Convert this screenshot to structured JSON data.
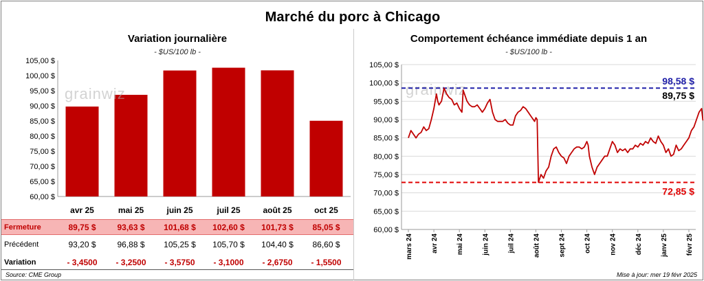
{
  "title": "Marché du porc à Chicago",
  "left": {
    "subtitle": "Variation journalière",
    "unit": "- $US/100 lb -"
  },
  "right": {
    "subtitle": "Comportement échéance immédiate depuis 1 an",
    "unit": "- $US/100 lb -"
  },
  "watermark": "grainwiz",
  "table": {
    "rows": [
      {
        "label": "Fermeture",
        "cells": [
          "89,75  $",
          "93,63  $",
          "101,68  $",
          "102,60  $",
          "101,73  $",
          "85,05  $"
        ]
      },
      {
        "label": "Précédent",
        "cells": [
          "93,20  $",
          "96,88  $",
          "105,25  $",
          "105,70  $",
          "104,40  $",
          "86,60  $"
        ]
      },
      {
        "label": "Variation",
        "cells": [
          "- 3,4500",
          "- 3,2500",
          "- 3,5750",
          "- 3,1000",
          "- 2,6750",
          "- 1,5500"
        ]
      }
    ]
  },
  "footer": {
    "source": "Source: CME Group",
    "update": "Mise à jour: mer 19 févr 2025"
  },
  "colors": {
    "bar": "#c00000",
    "line": "#c00000",
    "high_line": "#1f1fa8",
    "low_line": "#e00000"
  },
  "chart_data": [
    {
      "type": "bar",
      "categories": [
        "avr 25",
        "mai 25",
        "juin 25",
        "juil 25",
        "août 25",
        "oct 25"
      ],
      "values": [
        89.75,
        93.63,
        101.68,
        102.6,
        101.73,
        85.05
      ],
      "ylim": [
        60,
        105
      ],
      "yticks": [
        60,
        65,
        70,
        75,
        80,
        85,
        90,
        95,
        100,
        105
      ],
      "ytick_labels": [
        "60,00 $",
        "65,00 $",
        "70,00 $",
        "75,00 $",
        "80,00 $",
        "85,00 $",
        "90,00 $",
        "95,00 $",
        "100,00 $",
        "105,00 $"
      ],
      "grid": false
    },
    {
      "type": "line",
      "ylim": [
        60,
        105
      ],
      "yticks": [
        60,
        65,
        70,
        75,
        80,
        85,
        90,
        95,
        100,
        105
      ],
      "ytick_labels": [
        "60,00 $",
        "65,00 $",
        "70,00 $",
        "75,00 $",
        "80,00 $",
        "85,00 $",
        "90,00 $",
        "95,00 $",
        "100,00 $",
        "105,00 $"
      ],
      "xtick_labels": [
        "mars 24",
        "avr 24",
        "mai 24",
        "juin 24",
        "juil 24",
        "août 24",
        "sept 24",
        "oct 24",
        "nov 24",
        "déc 24",
        "janv 25",
        "févr 25"
      ],
      "grid": true,
      "series": [
        {
          "x": [
            0,
            0.1,
            0.2,
            0.3,
            0.4,
            0.5,
            0.6,
            0.7,
            0.8,
            0.9,
            1.0,
            1.1,
            1.15,
            1.2,
            1.3,
            1.4,
            1.5,
            1.6,
            1.7,
            1.8,
            1.9,
            2.0,
            2.1,
            2.15,
            2.2,
            2.3,
            2.4,
            2.5,
            2.6,
            2.7,
            2.8,
            2.9,
            3.0,
            3.1,
            3.2,
            3.3,
            3.4,
            3.5,
            3.6,
            3.7,
            3.8,
            3.9,
            4.0,
            4.1,
            4.2,
            4.3,
            4.4,
            4.5,
            4.6,
            4.7,
            4.8,
            4.9,
            4.95,
            5.0,
            5.05,
            5.1,
            5.2,
            5.3,
            5.4,
            5.5,
            5.6,
            5.7,
            5.8,
            5.9,
            6.0,
            6.1,
            6.2,
            6.3,
            6.4,
            6.5,
            6.6,
            6.7,
            6.8,
            6.9,
            7.0,
            7.05,
            7.1,
            7.2,
            7.3,
            7.4,
            7.5,
            7.6,
            7.7,
            7.8,
            7.9,
            8.0,
            8.1,
            8.2,
            8.3,
            8.4,
            8.5,
            8.6,
            8.7,
            8.8,
            8.9,
            9.0,
            9.1,
            9.2,
            9.3,
            9.4,
            9.5,
            9.6,
            9.7,
            9.8,
            9.9,
            10.0,
            10.1,
            10.2,
            10.3,
            10.4,
            10.5,
            10.6,
            10.7,
            10.8,
            10.9,
            11.0,
            11.1,
            11.2,
            11.3,
            11.4,
            11.5,
            11.55
          ],
          "y": [
            85,
            87,
            86,
            85,
            86,
            86.5,
            88,
            87,
            87.5,
            90,
            93,
            97,
            95,
            94,
            95,
            98.58,
            97,
            96,
            95.5,
            94,
            94.5,
            93,
            92,
            98,
            97,
            95,
            94,
            93.5,
            93.5,
            94,
            93,
            92,
            93,
            94.5,
            95.5,
            92,
            90,
            89.5,
            89.5,
            89.5,
            90,
            89,
            88.5,
            88.5,
            91,
            92,
            92.5,
            93.5,
            93,
            92,
            91,
            90,
            89.5,
            90.5,
            90,
            72.85,
            75,
            74,
            76,
            77,
            80,
            82,
            82.5,
            81,
            80,
            79.5,
            78,
            80,
            81,
            82,
            82.5,
            82.5,
            82,
            82.5,
            84,
            83,
            80,
            77,
            75,
            77,
            78,
            79,
            80,
            80,
            82,
            84,
            83,
            81,
            82,
            81.5,
            82,
            81,
            82,
            82,
            83,
            82.5,
            83.5,
            83,
            84,
            83.5,
            85,
            84,
            83.5,
            85.5,
            84,
            83,
            81,
            82,
            80,
            80.5,
            83,
            81.5,
            82,
            83,
            84,
            85,
            87,
            88,
            90,
            92,
            93,
            89.75
          ]
        }
      ],
      "reference_lines": [
        {
          "value": 98.58,
          "label": "98,58 $"
        },
        {
          "value": 72.85,
          "label": "72,85 $"
        }
      ],
      "last_label": "89,75 $"
    }
  ]
}
